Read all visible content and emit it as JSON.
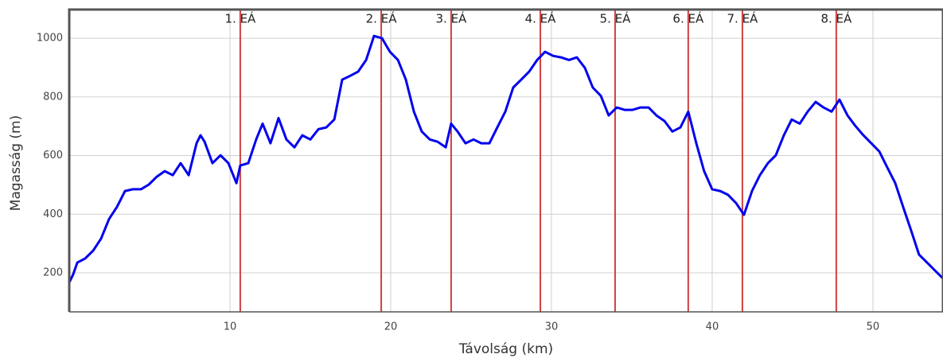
{
  "chart_data": {
    "type": "line",
    "x_label": "Távolság (km)",
    "y_label": "Magasság (m)",
    "color": "#0000ee",
    "marker_color": "#d04040",
    "grid": true,
    "xlim": [
      0,
      54.36
    ],
    "xticks": [
      10,
      20,
      30,
      40,
      50
    ],
    "ylim": [
      67,
      1098
    ],
    "yticks": [
      200,
      400,
      600,
      800,
      1000
    ],
    "x": [
      0,
      0.25,
      0.5,
      0.99,
      1.49,
      1.98,
      2.48,
      2.97,
      3.47,
      3.96,
      4.46,
      4.95,
      5.45,
      5.94,
      6.44,
      6.93,
      7.43,
      7.92,
      8.17,
      8.42,
      8.91,
      9.41,
      9.9,
      10.4,
      10.64,
      11.14,
      11.63,
      12.03,
      12.52,
      13.02,
      13.51,
      14.01,
      14.5,
      15,
      15.5,
      15.99,
      16.49,
      16.98,
      17.48,
      17.97,
      18.47,
      18.96,
      19.46,
      19.95,
      20.45,
      20.94,
      21.44,
      21.93,
      22.43,
      22.92,
      23.42,
      23.76,
      24.16,
      24.65,
      25.15,
      25.64,
      26.14,
      26.63,
      27.13,
      27.62,
      28.12,
      28.61,
      29.11,
      29.6,
      30.1,
      30.59,
      31.09,
      31.58,
      32.08,
      32.57,
      33.07,
      33.56,
      34.06,
      34.55,
      35.05,
      35.54,
      36.04,
      36.53,
      37.03,
      37.52,
      38.02,
      38.51,
      39.01,
      39.5,
      40,
      40.5,
      40.99,
      41.49,
      41.98,
      42.48,
      42.97,
      43.47,
      43.96,
      44.46,
      44.95,
      45.45,
      45.94,
      46.44,
      46.93,
      47.43,
      47.92,
      48.42,
      48.91,
      49.41,
      49.9,
      50.4,
      50.89,
      51.39,
      51.88,
      52.38,
      52.87,
      53.37,
      53.86,
      54.36
    ],
    "values": [
      167,
      195,
      235,
      249,
      276,
      317,
      384,
      425,
      479,
      485,
      485,
      501,
      528,
      547,
      533,
      574,
      533,
      642,
      669,
      647,
      574,
      601,
      574,
      506,
      566,
      574,
      655,
      709,
      642,
      728,
      655,
      628,
      669,
      655,
      690,
      696,
      723,
      859,
      872,
      886,
      926,
      1008,
      1000,
      954,
      926,
      859,
      750,
      682,
      655,
      647,
      628,
      709,
      682,
      642,
      655,
      642,
      642,
      696,
      750,
      832,
      859,
      886,
      926,
      954,
      940,
      935,
      926,
      935,
      899,
      832,
      804,
      737,
      764,
      756,
      756,
      764,
      764,
      737,
      718,
      682,
      696,
      750,
      642,
      547,
      485,
      479,
      466,
      438,
      398,
      479,
      533,
      574,
      601,
      669,
      723,
      709,
      750,
      783,
      764,
      750,
      791,
      737,
      701,
      669,
      642,
      614,
      560,
      506,
      425,
      344,
      262,
      235,
      208,
      181
    ],
    "markers": [
      {
        "x": 10.64,
        "label": "1. EÁ"
      },
      {
        "x": 19.41,
        "label": "2. EÁ"
      },
      {
        "x": 23.76,
        "label": "3. EÁ"
      },
      {
        "x": 29.31,
        "label": "4. EÁ"
      },
      {
        "x": 33.96,
        "label": "5. EÁ"
      },
      {
        "x": 38.51,
        "label": "6. EÁ"
      },
      {
        "x": 41.88,
        "label": "7. EÁ"
      },
      {
        "x": 47.72,
        "label": "8. EÁ"
      }
    ]
  }
}
